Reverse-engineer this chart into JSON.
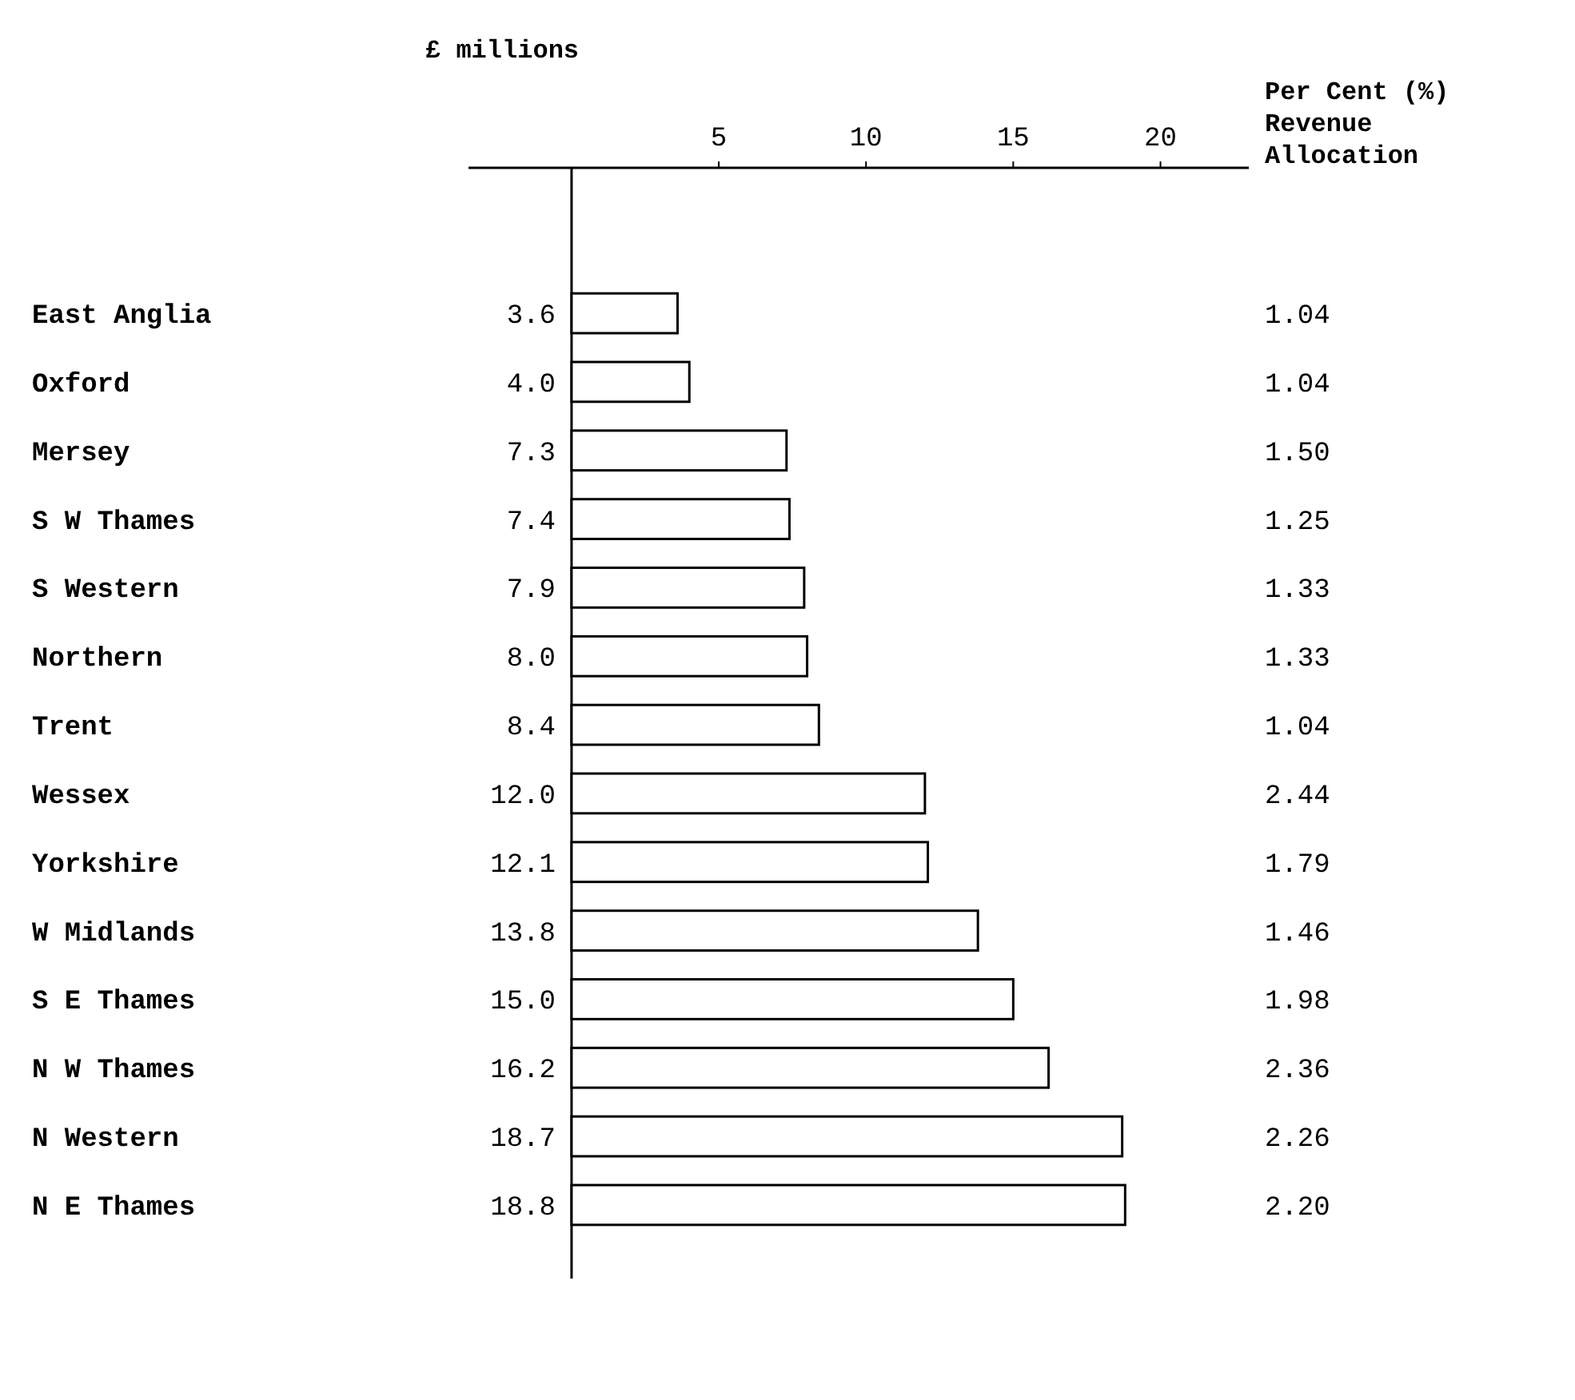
{
  "chart_data": {
    "type": "bar",
    "orientation": "horizontal",
    "xlabel": "£ millions",
    "categories": [
      "East Anglia",
      "Oxford",
      "Mersey",
      "S W Thames",
      "S Western",
      "Northern",
      "Trent",
      "Wessex",
      "Yorkshire",
      "W Midlands",
      "S E Thames",
      "N W Thames",
      "N Western",
      "N E Thames"
    ],
    "values": [
      3.6,
      4.0,
      7.3,
      7.4,
      7.9,
      8.0,
      8.4,
      12.0,
      12.1,
      13.8,
      15.0,
      16.2,
      18.7,
      18.8
    ],
    "value_labels": [
      "3.6",
      "4.0",
      "7.3",
      "7.4",
      "7.9",
      "8.0",
      "8.4",
      "12.0",
      "12.1",
      "13.8",
      "15.0",
      "16.2",
      "18.7",
      "18.8"
    ],
    "color": "#ffffff",
    "x2lim": [
      -3.5,
      23
    ],
    "x2ticks": [
      5,
      10,
      15,
      20
    ],
    "grid": false,
    "annotations": [
      "Per Cent (%)\nRevenue\nAllocation",
      "1.04",
      "1.04",
      "1.50",
      "1.25",
      "1.33",
      "1.33",
      "1.04",
      "2.44",
      "1.79",
      "1.46",
      "1.98",
      "2.36",
      "2.26",
      "2.20"
    ]
  }
}
